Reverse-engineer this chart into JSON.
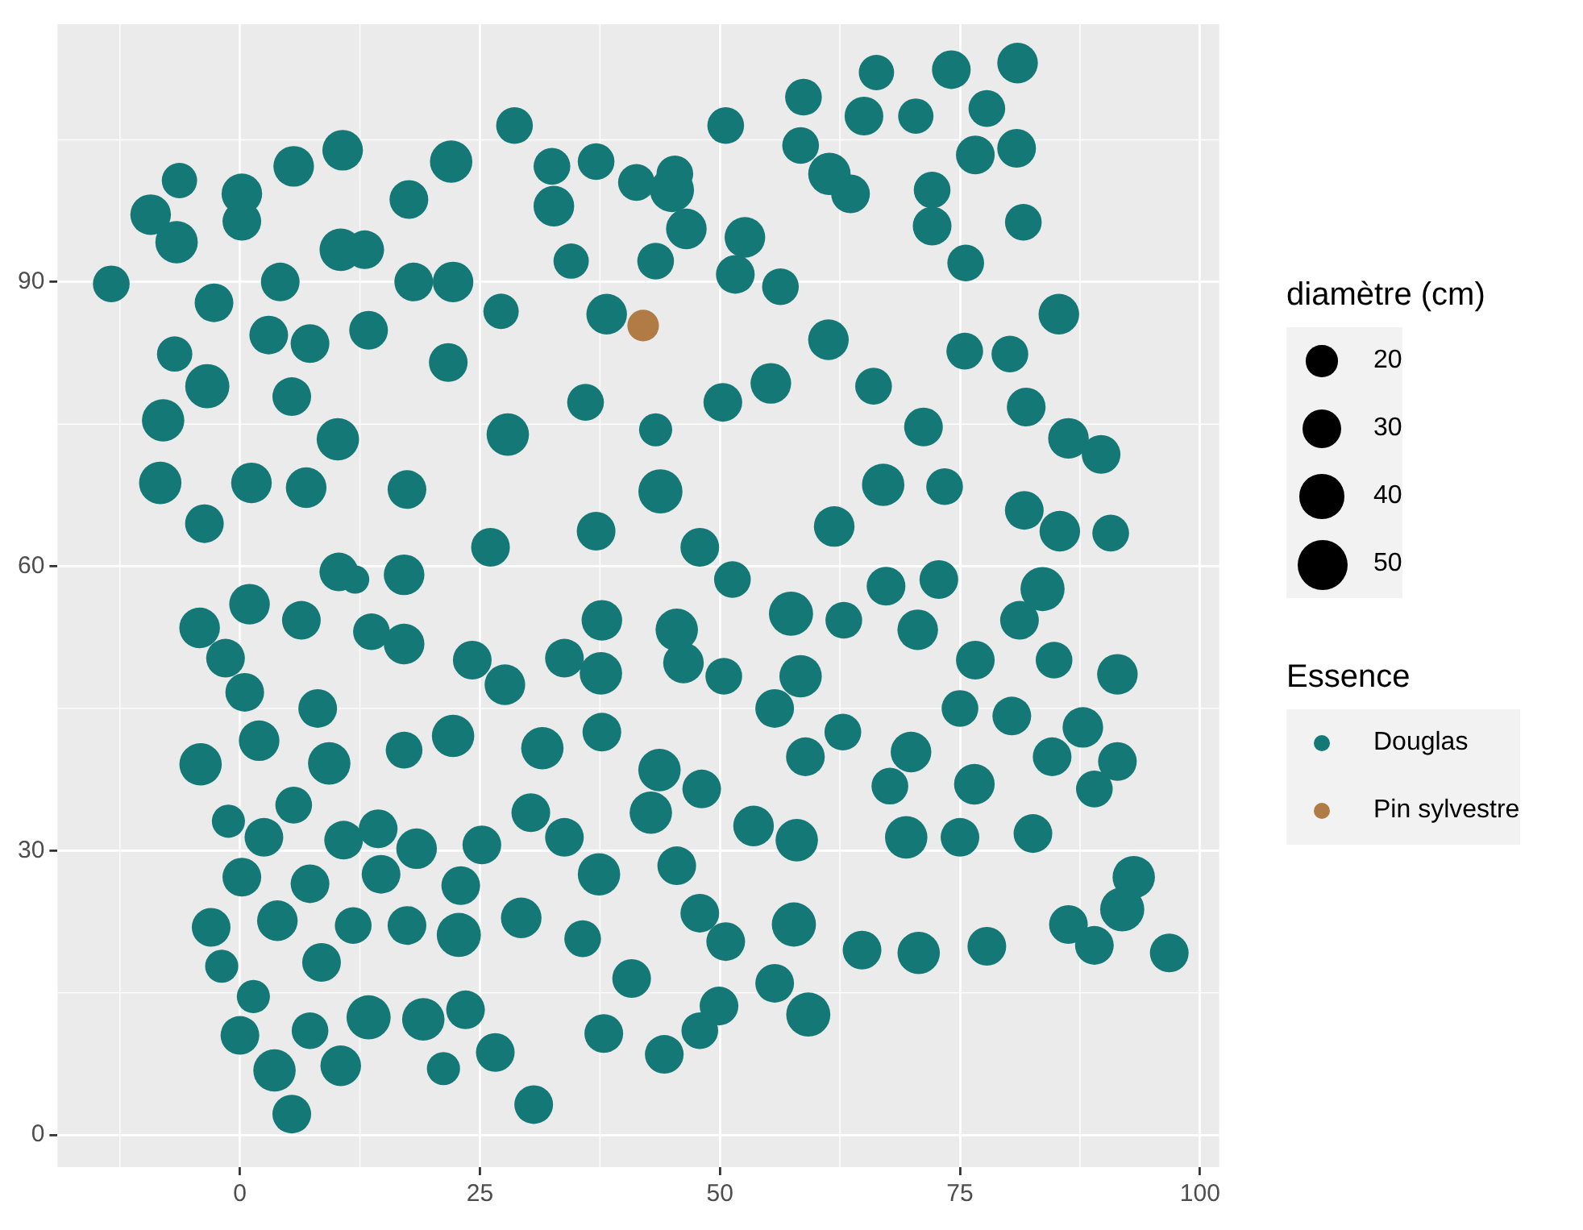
{
  "chart_data": {
    "type": "bubble",
    "xlim": [
      -19,
      102
    ],
    "ylim": [
      -3.4,
      117.2
    ],
    "xticks": [
      0,
      25,
      50,
      75,
      100
    ],
    "yticks": [
      0,
      30,
      60,
      90
    ],
    "grid": true,
    "legend": "right",
    "legend_title": [
      "diamètre (cm)",
      "Essence"
    ],
    "size_legend": [
      20,
      30,
      40,
      50
    ],
    "series": [
      {
        "name": "Douglas",
        "color": "#137876",
        "x": [
          81.0,
          74.1,
          66.3,
          58.7,
          65.0,
          70.4,
          77.8,
          76.6,
          80.9,
          72.1,
          72.1,
          81.6,
          75.6,
          85.3,
          61.4,
          58.4,
          50.6,
          45.3,
          41.3,
          37.1,
          32.5,
          28.6,
          32.7,
          45.0,
          46.5,
          52.6,
          63.6,
          51.6,
          56.3,
          38.2,
          34.5,
          43.3,
          22.0,
          17.6,
          13.0,
          18.1,
          22.2,
          27.2,
          10.7,
          5.6,
          0.2,
          -6.3,
          -6.6,
          -9.3,
          -13.4,
          0.2,
          10.5,
          4.2,
          -2.7,
          3.0,
          7.3,
          13.4,
          -6.8,
          -3.4,
          5.4,
          10.2,
          -8.0,
          -8.3,
          -3.7,
          1.2,
          6.9,
          17.4,
          21.7,
          27.9,
          36.0,
          43.3,
          50.3,
          55.3,
          61.3,
          66.0,
          71.2,
          67.0,
          89.7,
          86.3,
          81.7,
          85.4,
          83.6,
          90.7,
          61.9,
          51.3,
          43.8,
          37.1,
          10.3,
          17.1,
          26.1,
          6.4,
          1.0,
          -4.2,
          -1.5,
          -4.1,
          2.0,
          9.3,
          8.1,
          13.7,
          17.1,
          17.1,
          22.2,
          24.2,
          27.6,
          33.8,
          37.7,
          37.6,
          43.7,
          45.5,
          46.2,
          57.4,
          58.4,
          50.4,
          62.9,
          67.3,
          70.6,
          72.8,
          76.6,
          81.2,
          84.8,
          91.4,
          87.8,
          84.6,
          91.4,
          89.0,
          76.5,
          69.9,
          67.7,
          62.8,
          58.9,
          55.7,
          48.1,
          53.5,
          58.0,
          69.4,
          75.0,
          82.6,
          93.1,
          91.9,
          86.3,
          89.0,
          96.8,
          77.8,
          70.7,
          64.8,
          57.7,
          59.2,
          55.7,
          50.6,
          47.9,
          45.5,
          42.8,
          37.4,
          33.8,
          30.3,
          25.2,
          23.0,
          22.8,
          29.3,
          35.7,
          40.8,
          44.2,
          47.9,
          49.9,
          37.9,
          30.6,
          26.6,
          23.5,
          21.2,
          19.1,
          13.4,
          10.5,
          7.3,
          3.6,
          5.4,
          0.0,
          1.4,
          8.5,
          3.9,
          -3.0,
          -1.9,
          0.2,
          7.3,
          10.8,
          14.7,
          17.4,
          11.8,
          14.4,
          18.4,
          5.6,
          2.5,
          -1.2,
          0.5,
          31.5,
          37.7,
          75.0,
          80.4,
          12.0,
          47.9,
          73.4,
          81.9,
          80.2,
          75.5
        ],
        "values": [
          113.1,
          112.4,
          112.1,
          109.5,
          107.5,
          107.5,
          108.3,
          103.4,
          104.1,
          99.7,
          95.9,
          96.3,
          92.0,
          86.6,
          101.4,
          104.4,
          106.5,
          101.4,
          100.5,
          102.7,
          102.2,
          106.5,
          98.0,
          99.7,
          95.6,
          94.7,
          99.3,
          90.8,
          89.5,
          86.6,
          92.2,
          92.2,
          102.7,
          98.7,
          93.4,
          90.0,
          90.0,
          86.9,
          103.9,
          102.2,
          99.3,
          100.7,
          94.2,
          97.1,
          89.8,
          96.4,
          93.4,
          90.0,
          87.8,
          84.4,
          83.5,
          84.9,
          82.4,
          79.0,
          77.9,
          73.4,
          75.4,
          68.8,
          64.5,
          68.8,
          68.3,
          68.1,
          81.5,
          73.9,
          77.3,
          74.4,
          77.3,
          79.3,
          83.9,
          79.0,
          74.7,
          68.6,
          71.8,
          73.5,
          65.9,
          63.7,
          57.6,
          63.5,
          64.2,
          58.6,
          67.9,
          63.7,
          59.4,
          59.1,
          62.0,
          54.3,
          56.0,
          53.5,
          50.3,
          39.1,
          41.6,
          39.2,
          45.0,
          53.1,
          40.6,
          51.8,
          42.1,
          50.1,
          47.5,
          50.3,
          54.3,
          48.7,
          38.5,
          53.3,
          49.8,
          55.0,
          48.4,
          48.4,
          54.3,
          57.9,
          53.3,
          58.6,
          50.1,
          54.3,
          50.1,
          48.6,
          43.0,
          39.9,
          39.4,
          36.5,
          37.0,
          40.4,
          36.8,
          42.5,
          39.9,
          45.0,
          36.5,
          32.6,
          31.1,
          31.4,
          31.4,
          31.8,
          27.2,
          23.8,
          22.2,
          20.0,
          19.2,
          19.9,
          19.2,
          19.5,
          22.2,
          12.7,
          16.0,
          20.4,
          23.4,
          28.4,
          34.0,
          27.5,
          31.4,
          34.0,
          30.6,
          26.3,
          21.1,
          22.9,
          20.7,
          16.5,
          8.5,
          11.0,
          13.6,
          10.7,
          3.2,
          8.7,
          13.2,
          7.0,
          12.2,
          12.4,
          7.3,
          11.0,
          6.8,
          2.2,
          10.5,
          14.6,
          18.2,
          22.6,
          21.9,
          17.8,
          27.2,
          26.5,
          31.1,
          27.5,
          22.1,
          22.1,
          32.3,
          30.2,
          34.8,
          31.4,
          33.1,
          46.7,
          40.8,
          42.5,
          45.0,
          44.2,
          58.6,
          62.0,
          68.4,
          76.8,
          82.4,
          82.7
        ],
        "sizes": [
          33,
          30,
          25,
          27,
          30,
          25,
          27,
          30,
          30,
          27,
          30,
          27,
          27,
          33,
          36,
          27,
          27,
          27,
          27,
          27,
          27,
          27,
          33,
          39,
          33,
          33,
          30,
          30,
          27,
          33,
          25,
          27,
          36,
          30,
          30,
          30,
          33,
          25,
          33,
          33,
          33,
          25,
          36,
          33,
          27,
          30,
          36,
          30,
          30,
          30,
          30,
          30,
          25,
          39,
          30,
          36,
          36,
          36,
          30,
          33,
          33,
          30,
          30,
          36,
          27,
          22,
          30,
          33,
          33,
          27,
          30,
          36,
          30,
          33,
          30,
          33,
          39,
          27,
          33,
          27,
          39,
          30,
          30,
          33,
          30,
          30,
          33,
          33,
          30,
          36,
          33,
          36,
          30,
          27,
          27,
          33,
          36,
          30,
          33,
          30,
          33,
          36,
          36,
          36,
          33,
          39,
          36,
          27,
          27,
          30,
          33,
          30,
          30,
          30,
          27,
          33,
          33,
          30,
          30,
          27,
          33,
          33,
          27,
          27,
          30,
          30,
          30,
          33,
          36,
          36,
          30,
          30,
          36,
          39,
          30,
          30,
          30,
          30,
          36,
          30,
          39,
          39,
          30,
          30,
          30,
          30,
          36,
          36,
          30,
          30,
          30,
          30,
          39,
          33,
          27,
          30,
          30,
          27,
          30,
          30,
          30,
          30,
          30,
          22,
          36,
          39,
          33,
          27,
          36,
          30,
          30,
          22,
          30,
          33,
          30,
          22,
          30,
          30,
          30,
          30,
          30,
          27,
          30,
          33,
          27,
          30,
          22,
          30,
          36,
          30,
          27,
          30,
          16,
          30,
          27,
          30,
          27,
          27
        ]
      },
      {
        "name": "Pin sylvestre",
        "color": "#b07b44",
        "x": [
          42.0
        ],
        "values": [
          85.4
        ],
        "sizes": [
          20
        ]
      }
    ]
  }
}
